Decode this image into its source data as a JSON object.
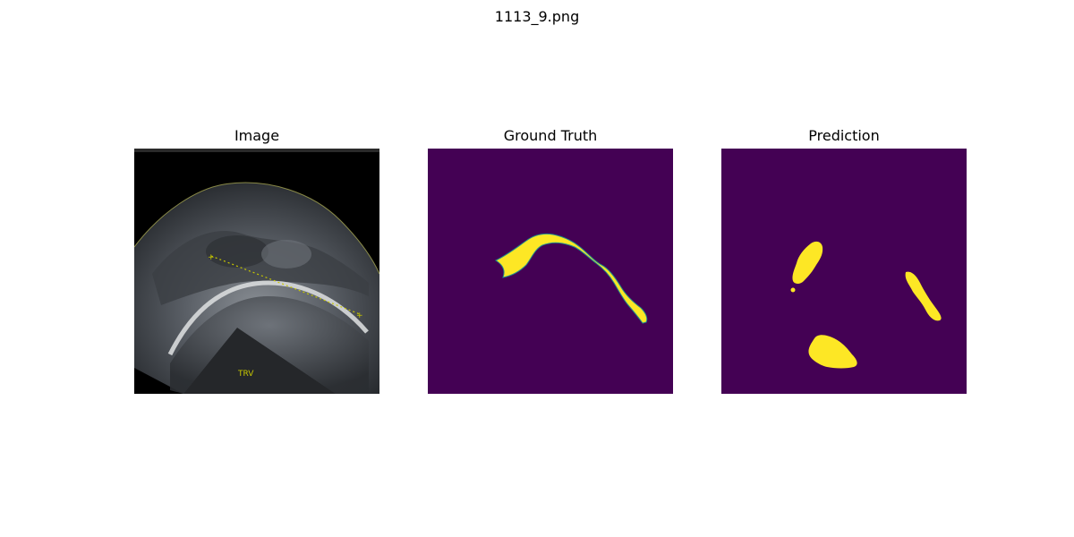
{
  "figure": {
    "title": "1113_9.png"
  },
  "panels": [
    {
      "title": "Image"
    },
    {
      "title": "Ground Truth"
    },
    {
      "title": "Prediction"
    }
  ],
  "image_panel": {
    "annotation_text": "TRV"
  },
  "colors": {
    "background": "#ffffff",
    "mask_background": "#440154",
    "mask_foreground": "#fde725",
    "mask_edge": "#21918c",
    "annotation": "#c8c800"
  }
}
